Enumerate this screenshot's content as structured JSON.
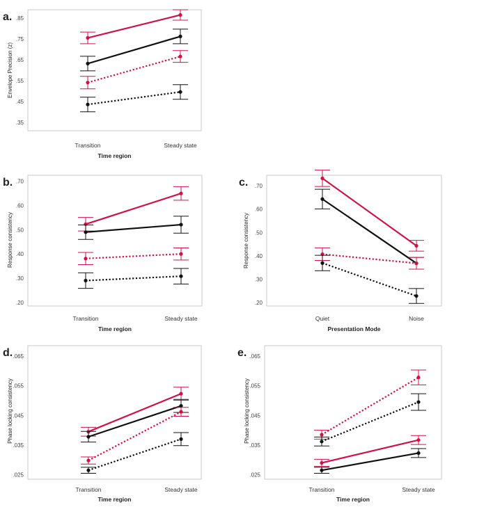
{
  "colors": {
    "red": "#d11145",
    "black": "#111111",
    "frame": "#c8c8c8"
  },
  "chart_data": [
    {
      "panel": "a.",
      "type": "line",
      "xlabel": "Time region",
      "ylabel": "Envelope Precision (z)",
      "categories": [
        "Transition",
        "Steady state"
      ],
      "ylim": [
        0.31,
        0.89
      ],
      "yticks": [
        0.35,
        0.45,
        0.55,
        0.65,
        0.75,
        0.85
      ],
      "ytick_labels": [
        ".35",
        ".45",
        ".55",
        ".65",
        ".75",
        ".85"
      ],
      "series": [
        {
          "name": "red-solid",
          "color": "red",
          "dashed": false,
          "values": [
            0.755,
            0.865
          ],
          "errors": [
            0.028,
            0.025
          ]
        },
        {
          "name": "black-solid",
          "color": "black",
          "dashed": false,
          "values": [
            0.632,
            0.762
          ],
          "errors": [
            0.035,
            0.035
          ]
        },
        {
          "name": "red-dotted",
          "color": "red",
          "dashed": true,
          "values": [
            0.541,
            0.666
          ],
          "errors": [
            0.03,
            0.028
          ]
        },
        {
          "name": "black-dotted",
          "color": "black",
          "dashed": true,
          "values": [
            0.436,
            0.496
          ],
          "errors": [
            0.035,
            0.035
          ]
        }
      ]
    },
    {
      "panel": "b.",
      "type": "line",
      "xlabel": "Time region",
      "ylabel": "Response consistency",
      "categories": [
        "Transition",
        "Steady state"
      ],
      "ylim": [
        0.185,
        0.725
      ],
      "yticks": [
        0.2,
        0.3,
        0.4,
        0.5,
        0.6,
        0.7
      ],
      "ytick_labels": [
        ".20",
        ".30",
        ".40",
        ".50",
        ".60",
        ".70"
      ],
      "series": [
        {
          "name": "red-solid",
          "color": "red",
          "dashed": false,
          "values": [
            0.523,
            0.65
          ],
          "errors": [
            0.028,
            0.028
          ]
        },
        {
          "name": "black-solid",
          "color": "black",
          "dashed": false,
          "values": [
            0.49,
            0.521
          ],
          "errors": [
            0.03,
            0.035
          ]
        },
        {
          "name": "red-dotted",
          "color": "red",
          "dashed": true,
          "values": [
            0.381,
            0.4
          ],
          "errors": [
            0.025,
            0.025
          ]
        },
        {
          "name": "black-dotted",
          "color": "black",
          "dashed": true,
          "values": [
            0.29,
            0.308
          ],
          "errors": [
            0.032,
            0.032
          ]
        }
      ]
    },
    {
      "panel": "c.",
      "type": "line",
      "xlabel": "Presentation Mode",
      "ylabel": "Response consistency",
      "categories": [
        "Quiet",
        "Noise"
      ],
      "ylim": [
        0.185,
        0.745
      ],
      "yticks": [
        0.2,
        0.3,
        0.4,
        0.5,
        0.6,
        0.7
      ],
      "ytick_labels": [
        ".20",
        ".30",
        ".40",
        ".50",
        ".60",
        ".70"
      ],
      "series": [
        {
          "name": "red-solid",
          "color": "red",
          "dashed": false,
          "values": [
            0.732,
            0.443
          ],
          "errors": [
            0.035,
            0.023
          ]
        },
        {
          "name": "black-solid",
          "color": "black",
          "dashed": false,
          "values": [
            0.643,
            0.368
          ],
          "errors": [
            0.042,
            0.025
          ]
        },
        {
          "name": "red-dotted",
          "color": "red",
          "dashed": true,
          "values": [
            0.407,
            0.368
          ],
          "errors": [
            0.027,
            0.025
          ]
        },
        {
          "name": "black-dotted",
          "color": "black",
          "dashed": true,
          "values": [
            0.369,
            0.228
          ],
          "errors": [
            0.033,
            0.032
          ]
        }
      ]
    },
    {
      "panel": "d.",
      "type": "line",
      "xlabel": "Time region",
      "ylabel": "Phase locking consistency",
      "categories": [
        "Transition",
        "Steady state"
      ],
      "ylim": [
        0.0235,
        0.0685
      ],
      "yticks": [
        0.025,
        0.035,
        0.045,
        0.055,
        0.065
      ],
      "ytick_labels": [
        ".025",
        ".035",
        ".045",
        ".055",
        ".065"
      ],
      "series": [
        {
          "name": "red-solid",
          "color": "red",
          "dashed": false,
          "values": [
            0.0395,
            0.0523
          ],
          "errors": [
            0.0015,
            0.0022
          ]
        },
        {
          "name": "black-solid",
          "color": "black",
          "dashed": false,
          "values": [
            0.0378,
            0.0482
          ],
          "errors": [
            0.0018,
            0.0022
          ]
        },
        {
          "name": "red-dotted",
          "color": "red",
          "dashed": true,
          "values": [
            0.0298,
            0.0462
          ],
          "errors": [
            0.0012,
            0.0015
          ]
        },
        {
          "name": "black-dotted",
          "color": "black",
          "dashed": true,
          "values": [
            0.0265,
            0.037
          ],
          "errors": [
            0.001,
            0.0022
          ]
        }
      ]
    },
    {
      "panel": "e.",
      "type": "line",
      "xlabel": "Time region",
      "ylabel": "Phase locking consistency",
      "categories": [
        "Transition",
        "Steady state"
      ],
      "ylim": [
        0.0235,
        0.0685
      ],
      "yticks": [
        0.025,
        0.035,
        0.045,
        0.055,
        0.065
      ],
      "ytick_labels": [
        ".025",
        ".035",
        ".045",
        ".055",
        ".065"
      ],
      "series": [
        {
          "name": "red-dotted",
          "color": "red",
          "dashed": true,
          "values": [
            0.0385,
            0.0578
          ],
          "errors": [
            0.0015,
            0.0025
          ]
        },
        {
          "name": "black-dotted",
          "color": "black",
          "dashed": true,
          "values": [
            0.0362,
            0.0495
          ],
          "errors": [
            0.0015,
            0.0028
          ]
        },
        {
          "name": "red-solid",
          "color": "red",
          "dashed": false,
          "values": [
            0.029,
            0.0367
          ],
          "errors": [
            0.0012,
            0.0015
          ]
        },
        {
          "name": "black-solid",
          "color": "black",
          "dashed": false,
          "values": [
            0.0265,
            0.0323
          ],
          "errors": [
            0.001,
            0.0015
          ]
        }
      ]
    }
  ]
}
